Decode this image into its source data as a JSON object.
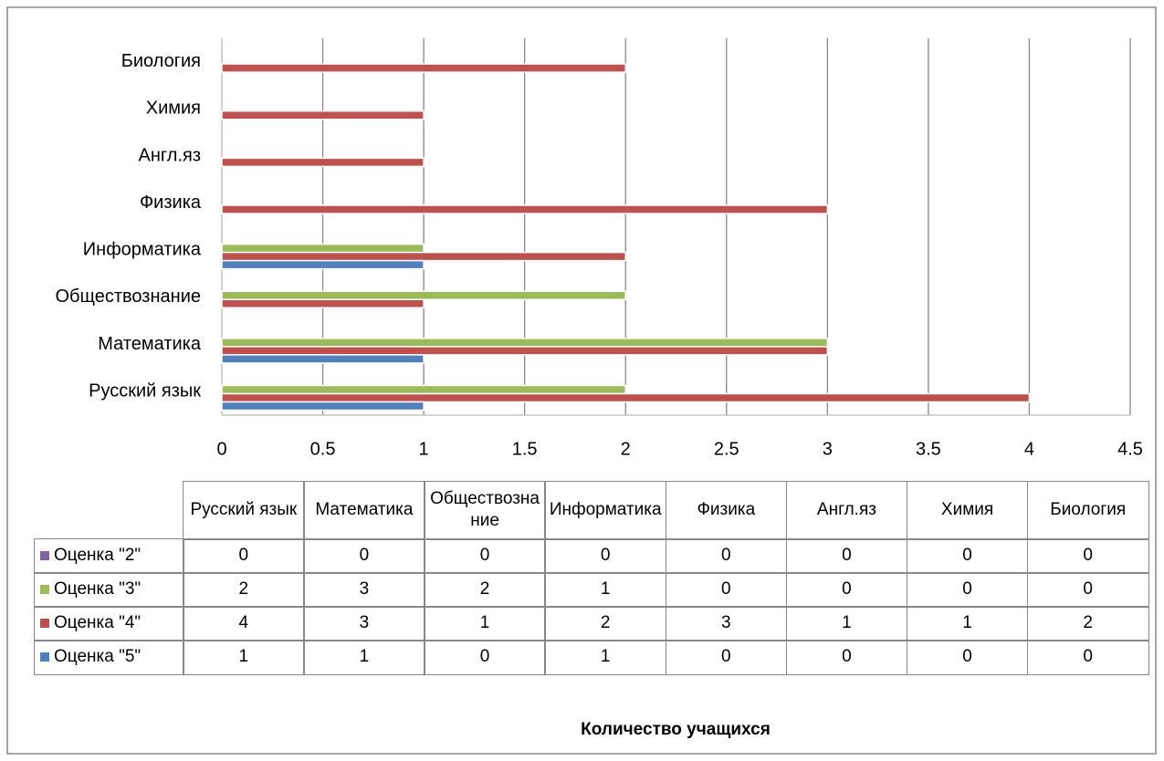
{
  "chart_data": {
    "type": "bar",
    "orientation": "horizontal",
    "x_label": "Количество учащихся",
    "categories": [
      "Русский язык",
      "Математика",
      "Обществознание",
      "Информатика",
      "Физика",
      "Англ.яз",
      "Химия",
      "Биология"
    ],
    "series": [
      {
        "name": "Оценка \"2\"",
        "color": "#8064a2",
        "values": [
          0,
          0,
          0,
          0,
          0,
          0,
          0,
          0
        ]
      },
      {
        "name": "Оценка \"3\"",
        "color": "#9bbb59",
        "values": [
          2,
          3,
          2,
          1,
          0,
          0,
          0,
          0
        ]
      },
      {
        "name": "Оценка \"4\"",
        "color": "#c0504d",
        "values": [
          4,
          3,
          1,
          2,
          3,
          1,
          1,
          2
        ]
      },
      {
        "name": "Оценка \"5\"",
        "color": "#4f81bd",
        "values": [
          1,
          1,
          0,
          1,
          0,
          0,
          0,
          0
        ]
      }
    ],
    "xlim": [
      0,
      4.5
    ],
    "xticks": [
      0,
      0.5,
      1,
      1.5,
      2,
      2.5,
      3,
      3.5,
      4,
      4.5
    ],
    "grid": true
  }
}
